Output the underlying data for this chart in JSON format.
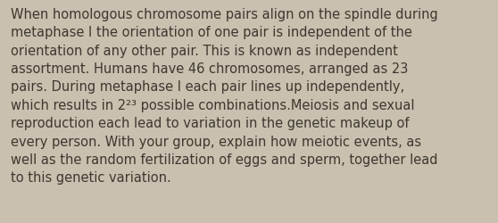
{
  "background_color": "#c9c0af",
  "text_color": "#3d3830",
  "font_size": 10.5,
  "figsize": [
    5.58,
    2.51
  ],
  "dpi": 100,
  "lines": [
    "When homologous chromosome pairs align on the spindle during",
    "metaphase I the orientation of one pair is independent of the",
    "orientation of any other pair. This is known as independent",
    "assortment. Humans have 46 chromosomes, arranged as 23",
    "pairs. During metaphase I each pair lines up independently,",
    "which results in 2²³ possible combinations.Meiosis and sexual",
    "reproduction each lead to variation in the genetic makeup of",
    "every person. With your group, explain how meiotic events, as",
    "well as the random fertilization of eggs and sperm, together lead",
    "to this genetic variation."
  ]
}
